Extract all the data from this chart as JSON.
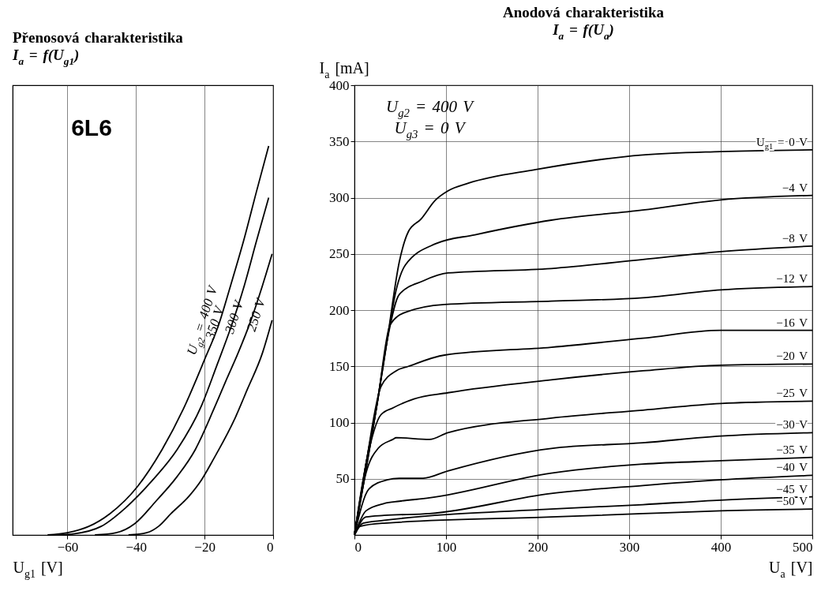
{
  "chart_data": [
    {
      "type": "line",
      "title": "Přenosová charakteristika",
      "subtitle": "I$_{a}$ = f(U$_{g1}$)",
      "xlabel": "U$_{g1}$ [V]",
      "xlim": [
        -76,
        0
      ],
      "ylim": [
        0,
        400
      ],
      "xticks": [
        -60,
        -40,
        -20,
        0
      ],
      "tick_labels": "x",
      "grid": true,
      "annotations": [
        "6L6"
      ],
      "series": [
        {
          "name": "U$_{g2}$ = 400 V",
          "color": "#000000",
          "x": [
            -65.8,
            -60,
            -53.8,
            -47.6,
            -39.6,
            -32.4,
            -26.2,
            -20,
            -16,
            -12.4,
            -8.4,
            -4.9,
            -1.3
          ],
          "values": [
            0,
            2,
            7.6,
            19,
            43,
            76,
            112,
            156,
            186,
            222,
            264,
            305,
            346
          ]
        },
        {
          "name": "350 V",
          "color": "#000000",
          "x": [
            -63.6,
            -58.2,
            -50.2,
            -43.1,
            -35.1,
            -28,
            -20.9,
            -16.4,
            -12.4,
            -8.4,
            -4.9,
            -1.3
          ],
          "values": [
            0,
            1,
            7.6,
            24,
            49,
            76,
            115,
            151,
            184,
            222,
            261,
            300
          ]
        },
        {
          "name": "300 V",
          "color": "#000000",
          "x": [
            -52,
            -45.8,
            -40.4,
            -34.2,
            -28,
            -22.7,
            -17.3,
            -13.8,
            -10.2,
            -6.7,
            -3.1,
            -0.3
          ],
          "values": [
            0,
            2,
            10,
            30,
            52,
            76,
            112,
            137,
            162,
            189,
            222,
            250
          ]
        },
        {
          "name": "250 V",
          "color": "#000000",
          "x": [
            -42.2,
            -36.9,
            -33.3,
            -29.8,
            -24.4,
            -20.9,
            -17.3,
            -11.1,
            -7.6,
            -3.1,
            -0.3
          ],
          "values": [
            0,
            2,
            8,
            19,
            35,
            49,
            68,
            104,
            129,
            162,
            191
          ]
        }
      ]
    },
    {
      "type": "line",
      "title": "Anodová charakteristika",
      "subtitle": "I$_{a}$ = f(U$_{a}$)",
      "xlabel": "U$_{a}$ [V]",
      "ylabel": "I$_{a}$ [mA]",
      "xlim": [
        0,
        500
      ],
      "ylim": [
        0,
        400
      ],
      "xticks": [
        0,
        100,
        200,
        300,
        400,
        500
      ],
      "yticks": [
        50,
        100,
        150,
        200,
        250,
        300,
        350,
        400
      ],
      "grid": true,
      "annotations": [
        "U$_{g2}$ = 400 V",
        "U$_{g3}$ = 0 V"
      ],
      "series": [
        {
          "name": "U$_{g1}$ = 0 V",
          "color": "#000000",
          "x": [
            0,
            12.6,
            25,
            35.7,
            49,
            59,
            72.7,
            88.6,
            102,
            125,
            198,
            315,
            400,
            500
          ],
          "values": [
            0,
            63,
            118,
            173,
            243,
            270,
            281,
            298,
            306,
            313,
            325,
            338,
            341,
            342.5
          ]
        },
        {
          "name": "−4 V",
          "color": "#000000",
          "x": [
            0,
            25,
            35.7,
            45.6,
            55.5,
            88.6,
            131.6,
            215,
            315,
            400,
            500
          ],
          "values": [
            0,
            118,
            173,
            218,
            240,
            259,
            267,
            280,
            289,
            298,
            302
          ]
        },
        {
          "name": "−8 V",
          "color": "#000000",
          "x": [
            0,
            25,
            35.7,
            49,
            75,
            102,
            215,
            315,
            400,
            500
          ],
          "values": [
            0,
            118,
            173,
            214,
            226,
            233,
            237,
            245,
            252,
            257
          ]
        },
        {
          "name": "−12 V",
          "color": "#000000",
          "x": [
            0,
            12.6,
            25,
            39,
            55.5,
            98.5,
            215,
            315,
            400,
            500
          ],
          "values": [
            0,
            63,
            118,
            187,
            198,
            205,
            208,
            211,
            218,
            221
          ]
        },
        {
          "name": "−16 V",
          "color": "#000000",
          "x": [
            0,
            12.6,
            29,
            45.6,
            59,
            98.5,
            215,
            315,
            400,
            500
          ],
          "values": [
            0,
            63,
            132,
            146,
            150,
            160,
            167,
            175,
            182,
            182
          ]
        },
        {
          "name": "−20 V",
          "color": "#000000",
          "x": [
            0,
            12.6,
            29,
            42,
            65,
            102,
            215,
            315,
            400,
            500
          ],
          "values": [
            0,
            63,
            107,
            113,
            121,
            126.5,
            138,
            146,
            151,
            152
          ]
        },
        {
          "name": "−25 V",
          "color": "#000000",
          "x": [
            0,
            12.6,
            25.8,
            42,
            45.6,
            82,
            102,
            215,
            315,
            400,
            500
          ],
          "values": [
            0,
            55,
            77,
            85,
            86.5,
            85,
            91,
            104,
            111,
            117,
            119
          ]
        },
        {
          "name": "−30 V",
          "color": "#000000",
          "x": [
            0,
            15.9,
            35.7,
            49,
            75,
            102,
            215,
            315,
            400,
            500
          ],
          "values": [
            0,
            41,
            49,
            50.5,
            50.5,
            57,
            77,
            82,
            88,
            91
          ]
        },
        {
          "name": "−35 V",
          "color": "#000000",
          "x": [
            0,
            12.6,
            32.4,
            49,
            82,
            215,
            315,
            400,
            500
          ],
          "values": [
            0,
            21.5,
            28,
            30,
            33,
            55,
            63,
            66,
            69
          ]
        },
        {
          "name": "−40 V",
          "color": "#000000",
          "x": [
            0,
            12.6,
            32.4,
            82,
            215,
            315,
            400,
            500
          ],
          "values": [
            0,
            16,
            17.4,
            19,
            37,
            44,
            49,
            53
          ]
        },
        {
          "name": "−45 V",
          "color": "#000000",
          "x": [
            0,
            9.3,
            32.4,
            215,
            315,
            400,
            500
          ],
          "values": [
            0,
            10.5,
            13,
            23,
            27,
            31,
            34
          ]
        },
        {
          "name": "−50 V",
          "color": "#000000",
          "x": [
            0,
            6,
            32.4,
            215,
            315,
            400,
            500
          ],
          "values": [
            0,
            7.7,
            10.5,
            16,
            19,
            21.5,
            23
          ]
        }
      ]
    }
  ]
}
